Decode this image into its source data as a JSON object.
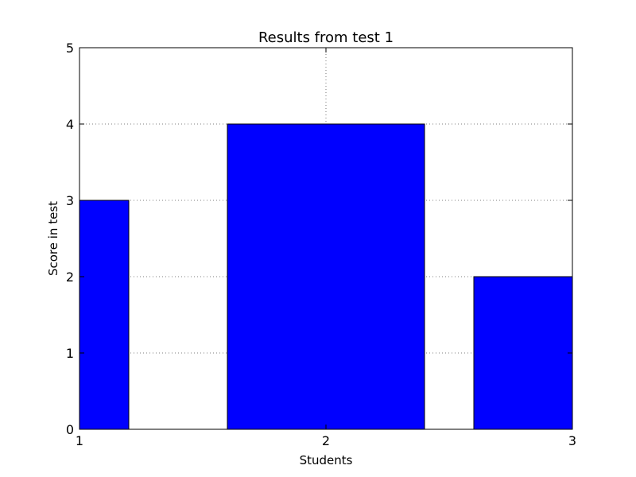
{
  "chart_data": {
    "type": "bar",
    "title": "Results from test 1",
    "xlabel": "Students",
    "ylabel": "Score in test",
    "bars": [
      {
        "x_start": 0.8,
        "x_end": 1.2,
        "value": 3
      },
      {
        "x_start": 1.6,
        "x_end": 2.4,
        "value": 4
      },
      {
        "x_start": 2.6,
        "x_end": 3.4,
        "value": 2
      }
    ],
    "xlim": [
      1,
      3
    ],
    "ylim": [
      0,
      5
    ],
    "xticks": [
      "1",
      "2",
      "3"
    ],
    "yticks": [
      "0",
      "1",
      "2",
      "3",
      "4",
      "5"
    ],
    "grid": true,
    "colors": {
      "bar": "#0000ff",
      "edge": "#000000",
      "grid": "#555555"
    }
  }
}
